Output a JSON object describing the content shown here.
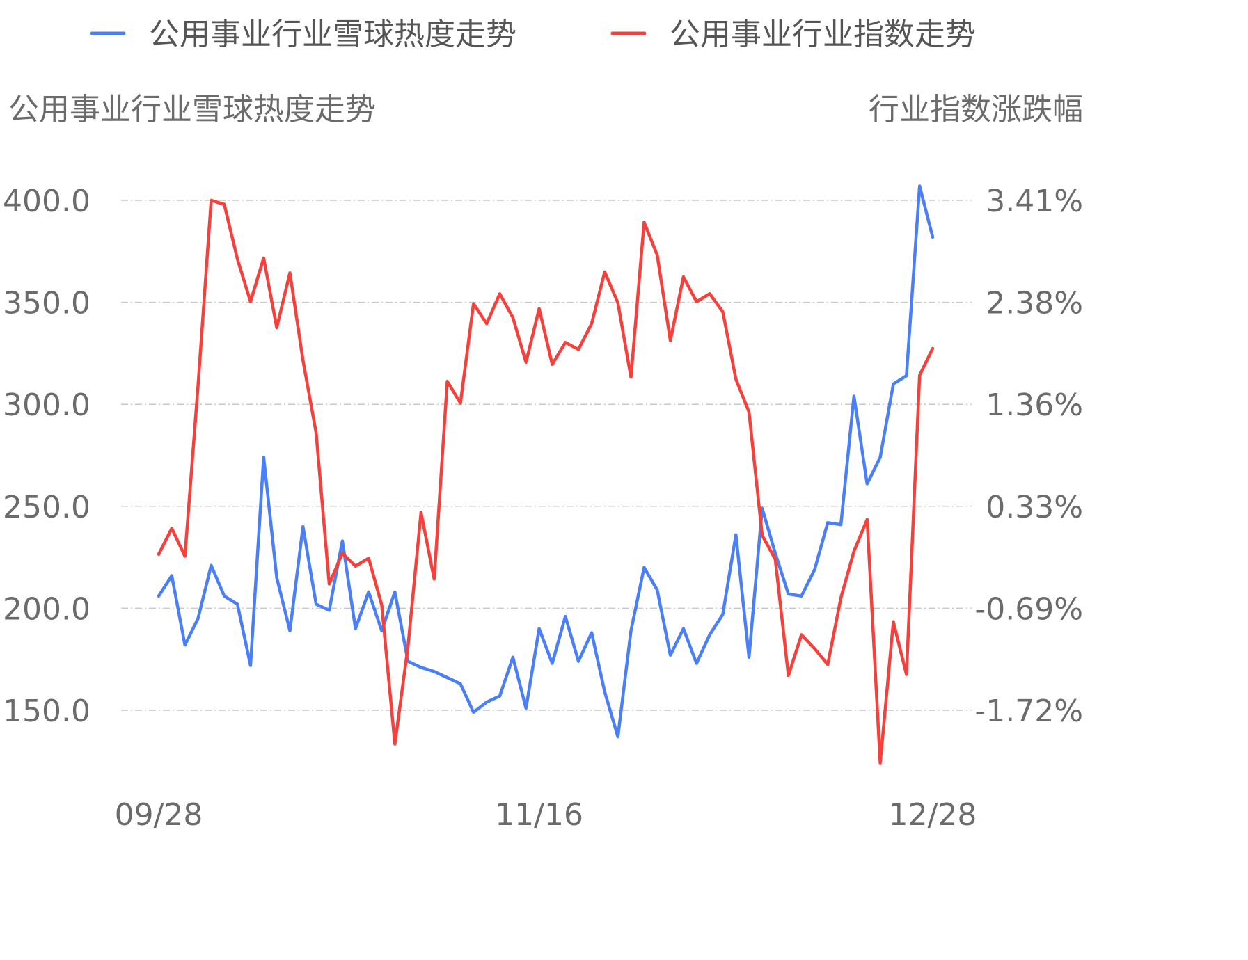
{
  "chart_data": {
    "type": "line",
    "legend": [
      {
        "name": "公用事业行业雪球热度走势",
        "color": "#4a7ff7"
      },
      {
        "name": "公用事业行业指数走势",
        "color": "#f5403c"
      }
    ],
    "left_axis_title": "公用事业行业雪球热度走势",
    "right_axis_title": "行业指数涨跌幅",
    "left_ticks": [
      "400.0",
      "350.0",
      "300.0",
      "250.0",
      "200.0",
      "150.0"
    ],
    "right_ticks": [
      "3.41%",
      "2.38%",
      "1.36%",
      "0.33%",
      "-0.69%",
      "-1.72%"
    ],
    "x_ticks": [
      {
        "label": "09/28",
        "index": 0
      },
      {
        "label": "11/16",
        "index": 29
      },
      {
        "label": "12/28",
        "index": 59
      }
    ],
    "left_range": [
      150,
      400
    ],
    "right_range": [
      -1.72,
      3.41
    ],
    "grid": true,
    "legend_position": "top",
    "series": [
      {
        "name": "公用事业行业雪球热度走势",
        "axis": "left",
        "color": "#4a7ff7",
        "values": [
          206,
          216,
          182,
          195,
          221,
          206,
          202,
          172,
          274,
          215,
          189,
          240,
          202,
          199,
          233,
          190,
          208,
          189,
          208,
          174,
          171,
          169,
          166,
          163,
          149,
          154,
          157,
          176,
          151,
          190,
          173,
          196,
          174,
          188,
          159,
          137,
          189,
          220,
          209,
          177,
          190,
          173,
          187,
          197,
          236,
          176,
          249,
          227,
          207,
          206,
          219,
          242,
          241,
          304,
          261,
          274,
          310,
          314,
          407,
          382
        ]
      },
      {
        "name": "公用事业行业指数走势",
        "axis": "right",
        "color": "#f5403c",
        "values": [
          -0.15,
          0.11,
          -0.17,
          1.54,
          3.41,
          3.37,
          2.82,
          2.39,
          2.83,
          2.13,
          2.68,
          1.8,
          1.07,
          -0.45,
          -0.14,
          -0.27,
          -0.19,
          -0.66,
          -2.06,
          -1.08,
          0.27,
          -0.4,
          1.59,
          1.37,
          2.37,
          2.17,
          2.47,
          2.23,
          1.78,
          2.32,
          1.76,
          1.98,
          1.91,
          2.17,
          2.69,
          2.38,
          1.63,
          3.19,
          2.86,
          2.0,
          2.64,
          2.39,
          2.47,
          2.29,
          1.61,
          1.28,
          0.04,
          -0.2,
          -1.37,
          -0.96,
          -1.1,
          -1.26,
          -0.59,
          -0.12,
          0.2,
          -2.25,
          -0.83,
          -1.36,
          1.65,
          1.92
        ]
      }
    ]
  }
}
